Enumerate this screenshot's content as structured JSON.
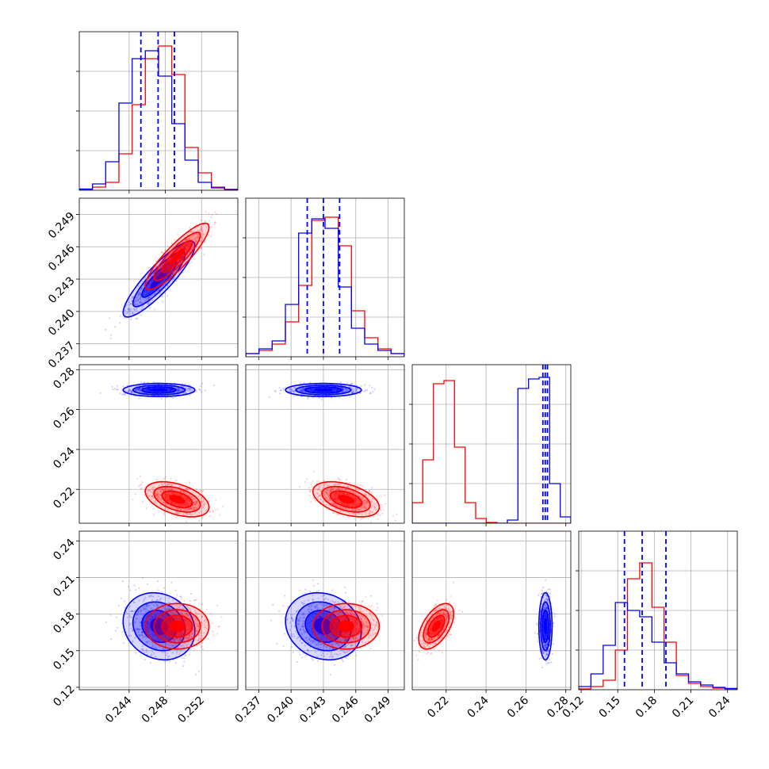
{
  "chart_data": {
    "type": "corner",
    "params": 4,
    "grid": true,
    "colors": {
      "series_a": "#0000ff",
      "series_b": "#ff0000"
    },
    "series": [
      {
        "color": "#0000ff",
        "mean": [
          0.2473,
          0.243,
          0.2698,
          0.17
        ],
        "sd": [
          0.0018,
          0.0016,
          0.0015,
          0.0125
        ],
        "corr": [
          [
            1,
            0.88,
            0,
            -0.15
          ],
          [
            0.88,
            1,
            0,
            -0.15
          ],
          [
            0,
            0,
            1,
            0
          ],
          [
            -0.15,
            -0.15,
            0,
            1
          ]
        ],
        "quantiles": [
          [
            0.2453,
            0.2472,
            0.249
          ],
          [
            0.2415,
            0.243,
            0.2445
          ],
          [
            0.2685,
            0.2697,
            0.2708
          ],
          [
            0.1555,
            0.17,
            0.1895
          ]
        ],
        "hist_values": [
          [
            0.008,
            0.04,
            0.18,
            0.55,
            0.83,
            0.88,
            0.72,
            0.42,
            0.19,
            0.05,
            0.015,
            0.004
          ],
          [
            0.02,
            0.05,
            0.1,
            0.33,
            0.78,
            0.87,
            0.81,
            0.44,
            0.18,
            0.08,
            0.04,
            0.02
          ],
          [
            0,
            0,
            0,
            0,
            0,
            0,
            0,
            0,
            0,
            0.02,
            0.85,
            0.91,
            0.92,
            0.25,
            0.04
          ],
          [
            0.02,
            0.1,
            0.28,
            0.55,
            0.5,
            0.46,
            0.3,
            0.17,
            0.1,
            0.05,
            0.03,
            0.015,
            0.008
          ]
        ]
      },
      {
        "color": "#ff0000",
        "mean": [
          0.2493,
          0.2451,
          0.215,
          0.17
        ],
        "sd": [
          0.0016,
          0.0014,
          0.004,
          0.0085
        ],
        "corr": [
          [
            1,
            0.88,
            -0.45,
            0
          ],
          [
            0.88,
            1,
            -0.45,
            0
          ],
          [
            -0.45,
            -0.45,
            1,
            0.55
          ],
          [
            0,
            0,
            0.55,
            1
          ]
        ],
        "quantiles": [],
        "hist_values": [
          [
            0.004,
            0.02,
            0.05,
            0.23,
            0.54,
            0.83,
            0.91,
            0.73,
            0.27,
            0.11,
            0.02,
            0.006
          ],
          [
            0.02,
            0.04,
            0.08,
            0.22,
            0.45,
            0.86,
            0.88,
            0.7,
            0.29,
            0.12,
            0.05,
            0.02
          ],
          [
            0.13,
            0.4,
            0.88,
            0.9,
            0.48,
            0.13,
            0.03,
            0.005,
            0,
            0,
            0,
            0,
            0,
            0,
            0
          ],
          [
            0.005,
            0.02,
            0.06,
            0.25,
            0.7,
            0.8,
            0.52,
            0.3,
            0.09,
            0.04,
            0.02,
            0.01,
            0.005
          ]
        ]
      }
    ],
    "axes": [
      {
        "range": [
          0.2385,
          0.256
        ],
        "ticks": [
          "0.244",
          "0.248",
          "0.252"
        ]
      },
      {
        "range": [
          0.2358,
          0.2505
        ],
        "ticks": [
          "0.237",
          "0.240",
          "0.243",
          "0.246",
          "0.249"
        ]
      },
      {
        "range": [
          0.203,
          0.2825
        ],
        "ticks": [
          "0.22",
          "0.24",
          "0.26",
          "0.28"
        ]
      },
      {
        "range": [
          0.118,
          0.248
        ],
        "ticks": [
          "0.12",
          "0.15",
          "0.18",
          "0.21",
          "0.24"
        ]
      }
    ],
    "hist_ticks": [
      0.25,
      0.5,
      0.75
    ],
    "xlabels": [],
    "ylabels": [],
    "title": ""
  }
}
